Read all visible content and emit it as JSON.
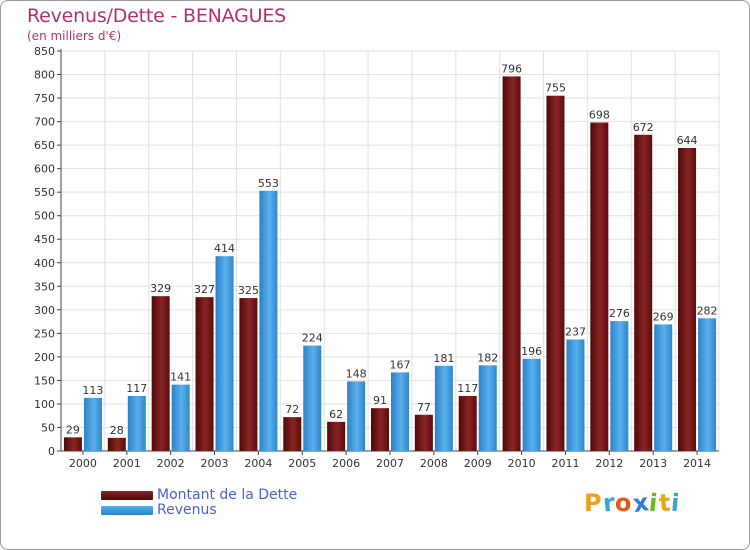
{
  "title": "Revenus/Dette - BENAGUES",
  "subtitle": "(en milliers d'€)",
  "logo_text": "Proxiti",
  "colors": {
    "debt": "#6e1414",
    "revenue": "#3d98dc",
    "title": "#b5306b",
    "legend_text": "#4a62d8"
  },
  "chart_data": {
    "type": "bar",
    "categories": [
      "2000",
      "2001",
      "2002",
      "2003",
      "2004",
      "2005",
      "2006",
      "2007",
      "2008",
      "2009",
      "2010",
      "2011",
      "2012",
      "2013",
      "2014"
    ],
    "series": [
      {
        "name": "Montant de la Dette",
        "values": [
          29,
          28,
          329,
          327,
          325,
          72,
          62,
          91,
          77,
          117,
          796,
          755,
          698,
          672,
          644
        ]
      },
      {
        "name": "Revenus",
        "values": [
          113,
          117,
          141,
          414,
          553,
          224,
          148,
          167,
          181,
          182,
          196,
          237,
          276,
          269,
          282
        ]
      }
    ],
    "ylim": [
      0,
      850
    ],
    "yticks": [
      0,
      50,
      100,
      150,
      200,
      250,
      300,
      350,
      400,
      450,
      500,
      550,
      600,
      650,
      700,
      750,
      800,
      850
    ],
    "grid": true,
    "legend_position": "bottom-left"
  }
}
